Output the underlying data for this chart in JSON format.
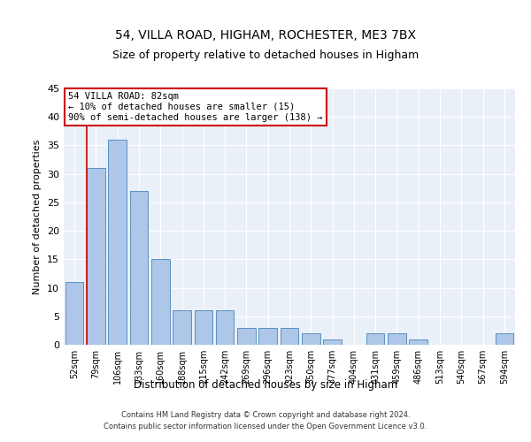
{
  "title": "54, VILLA ROAD, HIGHAM, ROCHESTER, ME3 7BX",
  "subtitle": "Size of property relative to detached houses in Higham",
  "xlabel": "Distribution of detached houses by size in Higham",
  "ylabel": "Number of detached properties",
  "categories": [
    "52sqm",
    "79sqm",
    "106sqm",
    "133sqm",
    "160sqm",
    "188sqm",
    "215sqm",
    "242sqm",
    "269sqm",
    "296sqm",
    "323sqm",
    "350sqm",
    "377sqm",
    "404sqm",
    "431sqm",
    "459sqm",
    "486sqm",
    "513sqm",
    "540sqm",
    "567sqm",
    "594sqm"
  ],
  "values": [
    11,
    31,
    36,
    27,
    15,
    6,
    6,
    6,
    3,
    3,
    3,
    2,
    1,
    0,
    2,
    2,
    1,
    0,
    0,
    0,
    2
  ],
  "bar_color": "#aec6e8",
  "bar_edge_color": "#5a8fc0",
  "vline_color": "#cc0000",
  "vline_x": 0.575,
  "annotation_text": "54 VILLA ROAD: 82sqm\n← 10% of detached houses are smaller (15)\n90% of semi-detached houses are larger (138) →",
  "annotation_box_color": "#ffffff",
  "annotation_box_edge_color": "#cc0000",
  "ylim": [
    0,
    45
  ],
  "yticks": [
    0,
    5,
    10,
    15,
    20,
    25,
    30,
    35,
    40,
    45
  ],
  "bg_color": "#eaf0f8",
  "grid_color": "#ffffff",
  "footer1": "Contains HM Land Registry data © Crown copyright and database right 2024.",
  "footer2": "Contains public sector information licensed under the Open Government Licence v3.0."
}
